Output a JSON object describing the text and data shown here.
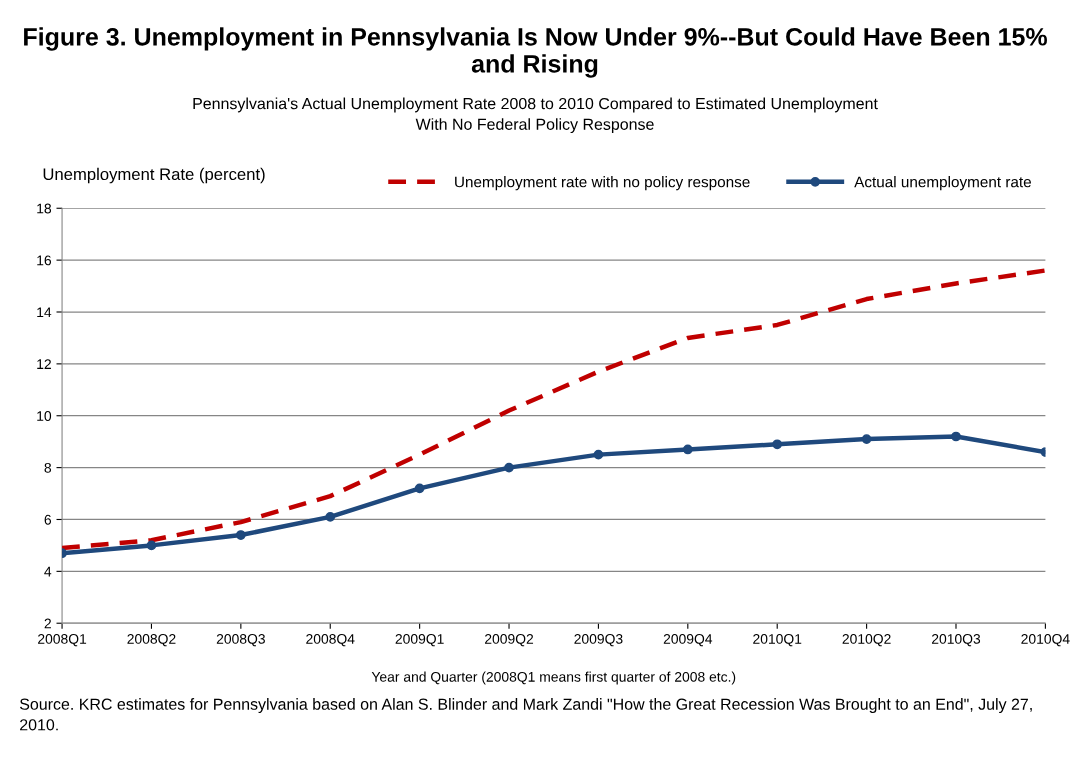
{
  "chart_data": {
    "type": "line",
    "title": "Figure 3. Unemployment in Pennsylvania Is Now Under 9%--But Could Have Been 15% and Rising",
    "subtitle": "Pennsylvania's Actual Unemployment Rate 2008 to 2010 Compared to Estimated Unemployment\nWith No Federal Policy Response",
    "ylabel": "Unemployment Rate (percent)",
    "xlabel": "Year and Quarter (2008Q1 means first quarter of 2008 etc.)",
    "annotations": [
      "Source. KRC estimates for Pennsylvania based on Alan S. Blinder and Mark Zandi \"How the Great Recession Was Brought to an End\", July 27, 2010."
    ],
    "categories": [
      "2008Q1",
      "2008Q2",
      "2008Q3",
      "2008Q4",
      "2009Q1",
      "2009Q2",
      "2009Q3",
      "2009Q4",
      "2010Q1",
      "2010Q2",
      "2010Q3",
      "2010Q4"
    ],
    "series": [
      {
        "name": "Unemployment rate with no policy response",
        "color": "#c00000",
        "line_style": "dashed",
        "marker": "none",
        "values": [
          4.9,
          5.2,
          5.9,
          6.9,
          8.5,
          10.2,
          11.7,
          13.0,
          13.5,
          14.5,
          15.1,
          15.6
        ]
      },
      {
        "name": "Actual unemployment rate",
        "color": "#1f497d",
        "line_style": "solid",
        "marker": "circle",
        "values": [
          4.7,
          5.0,
          5.4,
          6.1,
          7.2,
          8.0,
          8.5,
          8.7,
          8.9,
          9.1,
          9.2,
          8.6
        ]
      }
    ],
    "ylim": [
      2,
      18
    ],
    "yticks": [
      2,
      4,
      6,
      8,
      10,
      12,
      14,
      16,
      18
    ],
    "grid": "y",
    "legend": "top right"
  }
}
